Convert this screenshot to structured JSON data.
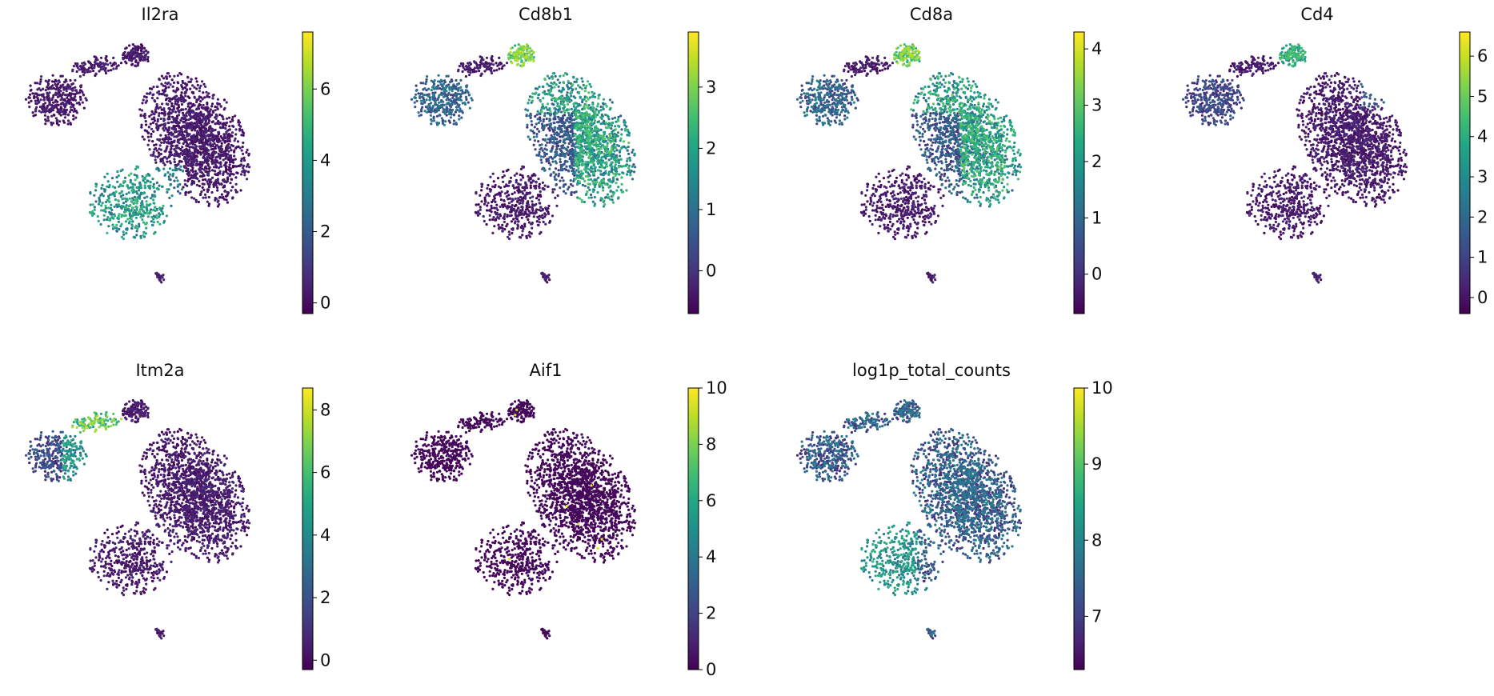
{
  "chart_data": [
    {
      "type": "scatter",
      "title": "Il2ra",
      "colorbar": {
        "min": -0.3,
        "max": 7.6,
        "ticks": [
          0,
          2,
          4,
          6
        ]
      },
      "colormap": "viridis",
      "expression_region": "lower-left",
      "grid": false
    },
    {
      "type": "scatter",
      "title": "Cd8b1",
      "colorbar": {
        "min": -0.7,
        "max": 3.9,
        "ticks": [
          0,
          1,
          2,
          3
        ]
      },
      "colormap": "viridis",
      "expression_region": "top-and-right",
      "grid": false
    },
    {
      "type": "scatter",
      "title": "Cd8a",
      "colorbar": {
        "min": -0.7,
        "max": 4.3,
        "ticks": [
          0,
          1,
          2,
          3,
          4
        ]
      },
      "colormap": "viridis",
      "expression_region": "top-and-right",
      "grid": false
    },
    {
      "type": "scatter",
      "title": "Cd4",
      "colorbar": {
        "min": -0.4,
        "max": 6.6,
        "ticks": [
          0,
          1,
          2,
          3,
          4,
          5,
          6
        ]
      },
      "colormap": "viridis",
      "expression_region": "top-small-cluster",
      "grid": false
    },
    {
      "type": "scatter",
      "title": "Itm2a",
      "colorbar": {
        "min": -0.3,
        "max": 8.7,
        "ticks": [
          0,
          2,
          4,
          6,
          8
        ]
      },
      "colormap": "viridis",
      "expression_region": "left-neck",
      "grid": false
    },
    {
      "type": "scatter",
      "title": "Aif1",
      "colorbar": {
        "min": 0,
        "max": 10,
        "ticks": [
          0,
          2,
          4,
          6,
          8,
          10
        ]
      },
      "colormap": "viridis",
      "expression_region": "sparse",
      "grid": false
    },
    {
      "type": "scatter",
      "title": "log1p_total_counts",
      "colorbar": {
        "min": 6.3,
        "max": 10,
        "ticks": [
          7,
          8,
          9,
          10
        ]
      },
      "colormap": "viridis",
      "expression_region": "global-moderate",
      "grid": false
    }
  ]
}
